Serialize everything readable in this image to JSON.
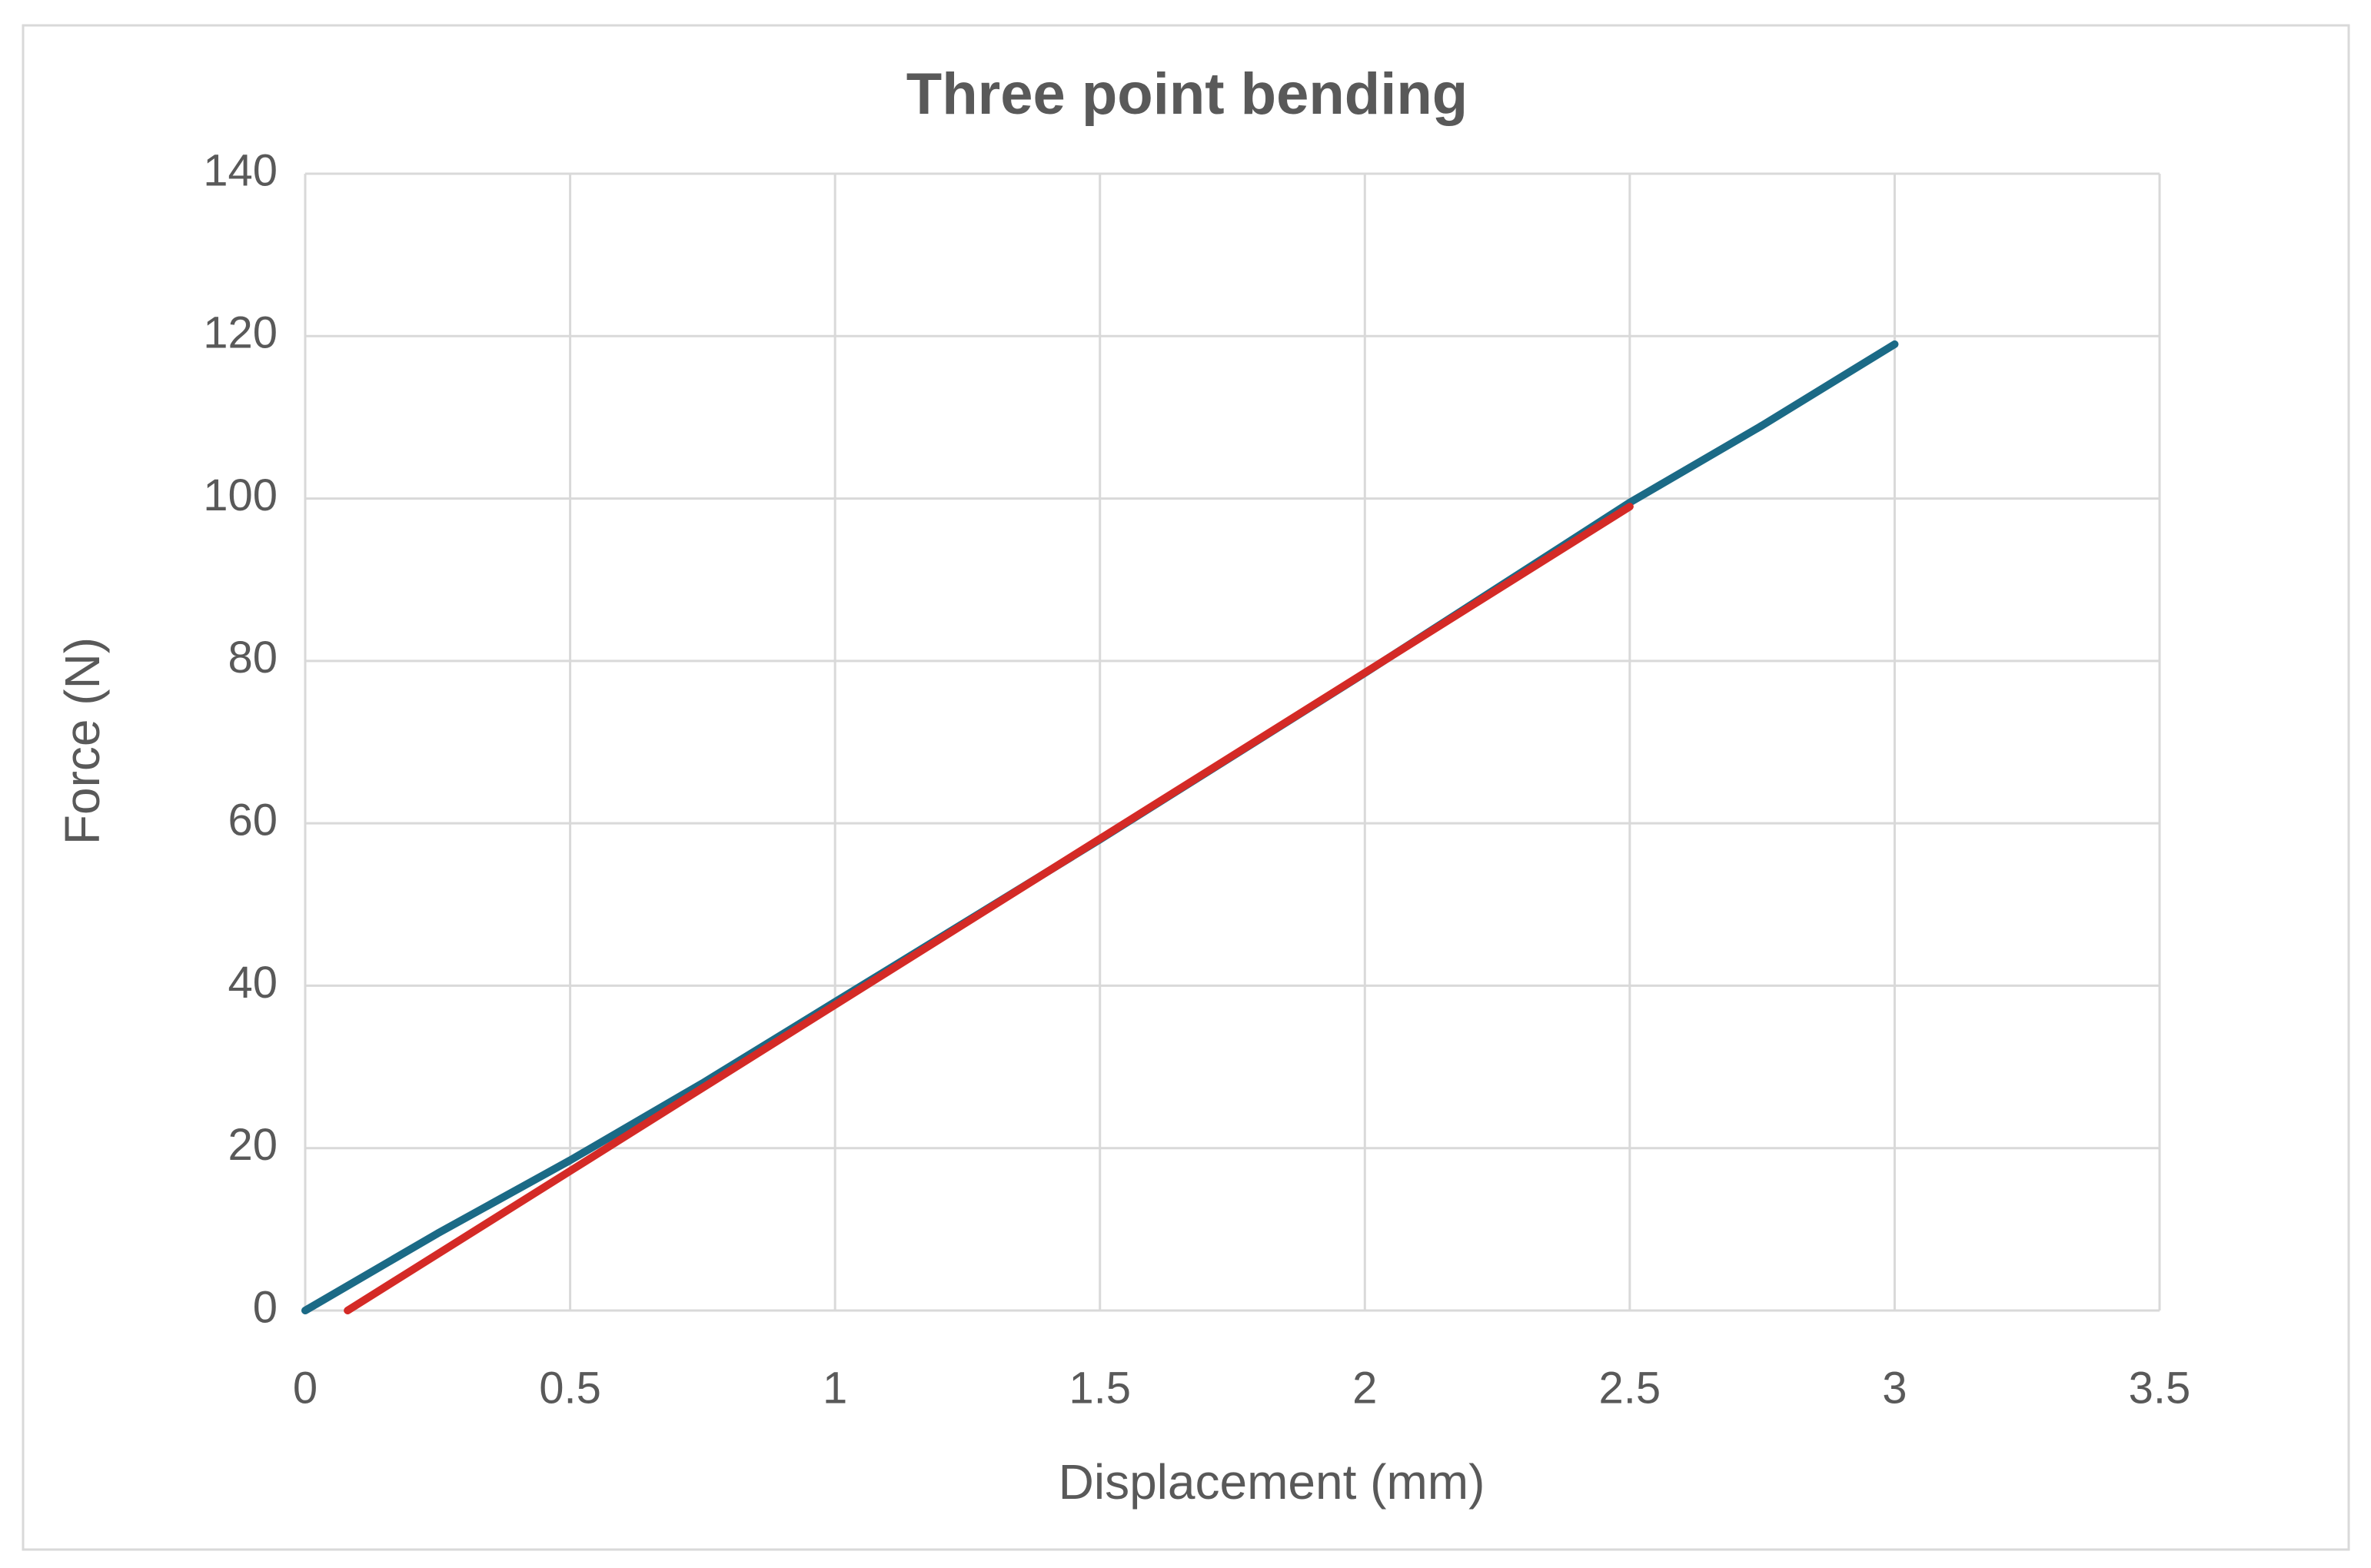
{
  "chart_data": {
    "type": "line",
    "title": "Three point bending",
    "x_label": "Displacement (mm)",
    "y_label": "Force (N)",
    "series": [
      {
        "color": "#1b6a86",
        "x": [
          0,
          0.25,
          0.5,
          0.75,
          1,
          1.5,
          2,
          2.5,
          2.75,
          3
        ],
        "values": [
          0,
          9.5,
          18.5,
          28,
          38,
          58,
          78.5,
          99.5,
          109,
          119
        ]
      },
      {
        "color": "#d42a26",
        "x": [
          0.08,
          2.5
        ],
        "values": [
          0,
          99
        ]
      }
    ],
    "xlim": [
      0,
      3.5
    ],
    "xticks": [
      0,
      0.5,
      1,
      1.5,
      2,
      2.5,
      3,
      3.5
    ],
    "ylim": [
      0,
      140
    ],
    "yticks": [
      0,
      20,
      40,
      60,
      80,
      100,
      120,
      140
    ],
    "grid": true
  }
}
